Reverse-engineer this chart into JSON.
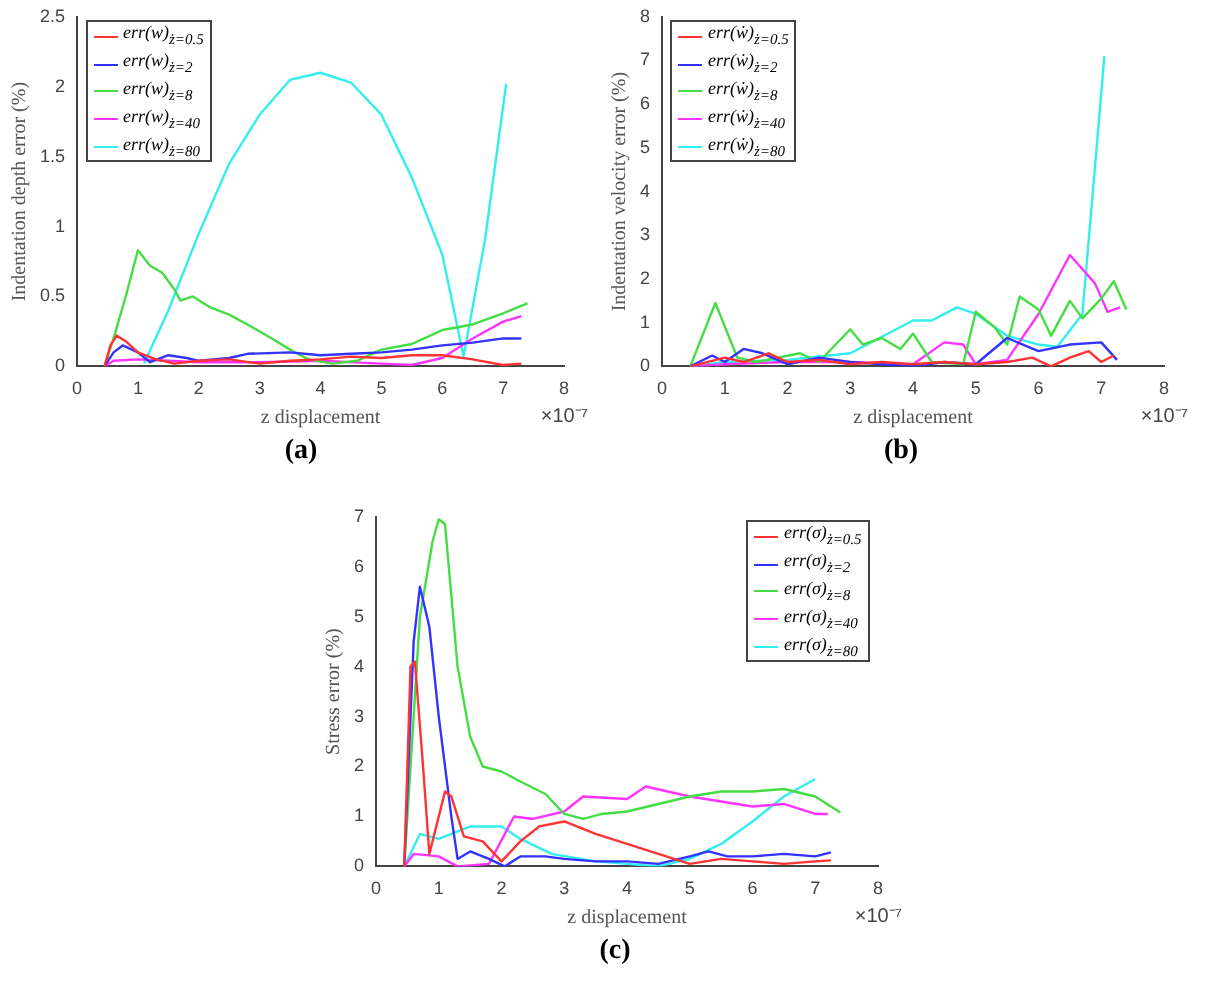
{
  "chart_data": [
    {
      "type": "line",
      "xlabel": "z displacement",
      "ylabel": "Indentation depth error (%)",
      "annotations": [
        "×10⁻⁷",
        "(a)"
      ],
      "xlim": [
        0,
        8
      ],
      "ylim": [
        0,
        2.5
      ],
      "xticks": [
        0,
        1,
        2,
        3,
        4,
        5,
        6,
        7,
        8
      ],
      "yticks": [
        0,
        0.5,
        1,
        1.5,
        2,
        2.5
      ],
      "legend": "top left",
      "marker": "none",
      "line_style": "solid",
      "grid": false,
      "series": [
        {
          "name": "err(w)$_{ż=0.5}$",
          "color": "#ff3333",
          "x": [
            0.45,
            0.55,
            0.65,
            0.8,
            1.0,
            1.3,
            1.6,
            2.0,
            2.5,
            3.0,
            3.5,
            4.0,
            4.5,
            5.0,
            5.5,
            6.0,
            6.5,
            7.0,
            7.3
          ],
          "values": [
            0,
            0.15,
            0.22,
            0.18,
            0.1,
            0.05,
            0.02,
            0.04,
            0.05,
            0.02,
            0.04,
            0.05,
            0.07,
            0.06,
            0.08,
            0.08,
            0.05,
            0.01,
            0.02
          ]
        },
        {
          "name": "err(w)$_{ż=2}$",
          "color": "#3333ff",
          "x": [
            0.45,
            0.6,
            0.75,
            1.0,
            1.2,
            1.5,
            1.8,
            2.0,
            2.5,
            2.8,
            3.5,
            4.0,
            4.5,
            5.0,
            5.5,
            6.0,
            6.5,
            7.0,
            7.3
          ],
          "values": [
            0,
            0.1,
            0.15,
            0.1,
            0.03,
            0.08,
            0.06,
            0.04,
            0.06,
            0.09,
            0.1,
            0.08,
            0.09,
            0.1,
            0.12,
            0.15,
            0.17,
            0.2,
            0.2
          ]
        },
        {
          "name": "err(w)$_{ż=8}$",
          "color": "#44dd44",
          "x": [
            0.45,
            0.6,
            0.8,
            1.0,
            1.2,
            1.4,
            1.6,
            1.7,
            1.9,
            2.2,
            2.5,
            2.8,
            3.2,
            3.5,
            3.8,
            4.2,
            4.6,
            5.0,
            5.5,
            6.0,
            6.5,
            7.0,
            7.4
          ],
          "values": [
            0,
            0.2,
            0.5,
            0.83,
            0.72,
            0.67,
            0.55,
            0.47,
            0.5,
            0.42,
            0.37,
            0.3,
            0.2,
            0.12,
            0.05,
            0.02,
            0.04,
            0.12,
            0.16,
            0.26,
            0.3,
            0.38,
            0.45
          ]
        },
        {
          "name": "err(w)$_{ż=40}$",
          "color": "#ff33ff",
          "x": [
            0.45,
            0.6,
            1.0,
            1.5,
            2.0,
            3.0,
            4.0,
            5.0,
            5.5,
            6.0,
            6.5,
            7.0,
            7.3
          ],
          "values": [
            0,
            0.04,
            0.05,
            0.04,
            0.03,
            0.03,
            0.04,
            0.02,
            0.01,
            0.06,
            0.2,
            0.32,
            0.36
          ]
        },
        {
          "name": "err(w)$_{ż=80}$",
          "color": "#33eeee",
          "x": [
            1.1,
            1.5,
            2.0,
            2.5,
            3.0,
            3.5,
            4.0,
            4.5,
            5.0,
            5.5,
            6.0,
            6.35,
            6.7,
            7.05
          ],
          "values": [
            0.02,
            0.4,
            0.95,
            1.45,
            1.8,
            2.05,
            2.1,
            2.03,
            1.8,
            1.35,
            0.8,
            0.07,
            0.9,
            2.02
          ]
        }
      ]
    },
    {
      "type": "line",
      "xlabel": "z displacement",
      "ylabel": "Indentation velocity error (%)",
      "annotations": [
        "×10⁻⁷",
        "(b)"
      ],
      "xlim": [
        0,
        8
      ],
      "ylim": [
        0,
        8
      ],
      "xticks": [
        0,
        1,
        2,
        3,
        4,
        5,
        6,
        7,
        8
      ],
      "yticks": [
        0,
        1,
        2,
        3,
        4,
        5,
        6,
        7,
        8
      ],
      "legend": "top left",
      "marker": "none",
      "line_style": "solid",
      "grid": false,
      "series": [
        {
          "name": "err(ẇ)$_{ż=0.5}$",
          "color": "#ff3333",
          "x": [
            0.45,
            1.0,
            1.3,
            1.7,
            2.0,
            2.5,
            3.0,
            3.5,
            4.0,
            4.5,
            5.0,
            5.5,
            5.9,
            6.2,
            6.5,
            6.8,
            7.0,
            7.2
          ],
          "values": [
            0,
            0.2,
            0.1,
            0.3,
            0.1,
            0.15,
            0.05,
            0.1,
            0.05,
            0.1,
            0.05,
            0.1,
            0.2,
            0,
            0.2,
            0.35,
            0.1,
            0.25
          ]
        },
        {
          "name": "err(ẇ)$_{ż=2}$",
          "color": "#3333ff",
          "x": [
            0.45,
            0.8,
            1.0,
            1.3,
            1.6,
            2.0,
            2.5,
            3.0,
            3.5,
            4.0,
            4.5,
            5.0,
            5.5,
            6.0,
            6.5,
            7.0,
            7.25
          ],
          "values": [
            0,
            0.25,
            0.1,
            0.4,
            0.3,
            0.05,
            0.2,
            0.1,
            0.05,
            0,
            0.1,
            0.05,
            0.65,
            0.35,
            0.5,
            0.55,
            0.15
          ]
        },
        {
          "name": "err(ẇ)$_{ż=8}$",
          "color": "#44dd44",
          "x": [
            0.45,
            0.85,
            1.2,
            1.5,
            2.2,
            2.5,
            3.0,
            3.2,
            3.5,
            3.8,
            4.0,
            4.3,
            4.8,
            5.0,
            5.3,
            5.5,
            5.7,
            6.0,
            6.2,
            6.5,
            6.7,
            7.0,
            7.2,
            7.4
          ],
          "values": [
            0,
            1.45,
            0.2,
            0.1,
            0.3,
            0.1,
            0.85,
            0.5,
            0.65,
            0.4,
            0.75,
            0.1,
            0.05,
            1.25,
            0.9,
            0.5,
            1.6,
            1.3,
            0.7,
            1.5,
            1.1,
            1.55,
            1.95,
            1.3
          ]
        },
        {
          "name": "err(ẇ)$_{ż=40}$",
          "color": "#ff33ff",
          "x": [
            0.45,
            1.0,
            2.0,
            3.0,
            4.0,
            4.5,
            4.8,
            5.0,
            5.5,
            6.0,
            6.5,
            6.9,
            7.1,
            7.3
          ],
          "values": [
            0,
            0.05,
            0.1,
            0.1,
            0.05,
            0.55,
            0.5,
            0.05,
            0.15,
            1.2,
            2.55,
            1.9,
            1.25,
            1.35
          ]
        },
        {
          "name": "err(ẇ)$_{ż=80}$",
          "color": "#33eeee",
          "x": [
            0.45,
            1.0,
            2.0,
            3.0,
            4.0,
            4.3,
            4.7,
            5.0,
            5.5,
            6.0,
            6.3,
            6.7,
            7.05
          ],
          "values": [
            0,
            0.1,
            0.15,
            0.3,
            1.05,
            1.05,
            1.35,
            1.2,
            0.7,
            0.5,
            0.45,
            1.2,
            7.1
          ]
        }
      ]
    },
    {
      "type": "line",
      "xlabel": "z displacement",
      "ylabel": "Stress error (%)",
      "annotations": [
        "×10⁻⁷",
        "(c)"
      ],
      "xlim": [
        0,
        8
      ],
      "ylim": [
        0,
        7
      ],
      "xticks": [
        0,
        1,
        2,
        3,
        4,
        5,
        6,
        7,
        8
      ],
      "yticks": [
        0,
        1,
        2,
        3,
        4,
        5,
        6,
        7
      ],
      "legend": "top right",
      "marker": "none",
      "line_style": "solid",
      "grid": false,
      "series": [
        {
          "name": "err(σ)$_{ż=0.5}$",
          "color": "#ff3333",
          "x": [
            0.45,
            0.55,
            0.62,
            0.75,
            0.85,
            1.1,
            1.2,
            1.4,
            1.7,
            2.0,
            2.3,
            2.6,
            3.0,
            3.5,
            4.0,
            4.5,
            5.0,
            5.5,
            6.0,
            6.5,
            7.0,
            7.25
          ],
          "values": [
            0,
            4.0,
            4.1,
            2.0,
            0.25,
            1.5,
            1.4,
            0.6,
            0.5,
            0.1,
            0.5,
            0.8,
            0.9,
            0.65,
            0.45,
            0.25,
            0.05,
            0.15,
            0.1,
            0.05,
            0.1,
            0.12
          ]
        },
        {
          "name": "err(σ)$_{ż=2}$",
          "color": "#3333ff",
          "x": [
            0.45,
            0.6,
            0.7,
            0.85,
            1.0,
            1.2,
            1.3,
            1.5,
            1.8,
            2.05,
            2.3,
            2.7,
            3.0,
            3.5,
            4.0,
            4.5,
            5.0,
            5.3,
            5.6,
            6.0,
            6.5,
            7.0,
            7.25
          ],
          "values": [
            0,
            4.5,
            5.6,
            4.8,
            3.0,
            1.0,
            0.15,
            0.3,
            0.15,
            0,
            0.2,
            0.2,
            0.15,
            0.1,
            0.1,
            0.05,
            0.2,
            0.3,
            0.2,
            0.2,
            0.25,
            0.2,
            0.28
          ]
        },
        {
          "name": "err(σ)$_{ż=8}$",
          "color": "#44dd44",
          "x": [
            0.45,
            0.7,
            0.9,
            1.0,
            1.1,
            1.3,
            1.5,
            1.7,
            2.0,
            2.3,
            2.7,
            3.0,
            3.3,
            3.6,
            4.0,
            4.5,
            5.0,
            5.5,
            6.0,
            6.5,
            7.0,
            7.4
          ],
          "values": [
            0,
            5.0,
            6.5,
            6.95,
            6.85,
            4.0,
            2.6,
            2.0,
            1.9,
            1.7,
            1.45,
            1.05,
            0.95,
            1.05,
            1.1,
            1.25,
            1.4,
            1.5,
            1.5,
            1.55,
            1.4,
            1.08
          ]
        },
        {
          "name": "err(σ)$_{ż=40}$",
          "color": "#ff33ff",
          "x": [
            0.45,
            0.6,
            1.0,
            1.3,
            1.8,
            2.2,
            2.5,
            3.0,
            3.3,
            4.0,
            4.3,
            5.0,
            5.5,
            6.0,
            6.5,
            7.0,
            7.2
          ],
          "values": [
            0,
            0.25,
            0.2,
            0,
            0.05,
            1.0,
            0.95,
            1.1,
            1.4,
            1.35,
            1.6,
            1.4,
            1.3,
            1.2,
            1.25,
            1.05,
            1.05
          ]
        },
        {
          "name": "err(σ)$_{ż=80}$",
          "color": "#33eeee",
          "x": [
            0.45,
            0.7,
            1.0,
            1.5,
            2.0,
            2.3,
            2.8,
            3.5,
            4.0,
            4.5,
            5.0,
            5.5,
            6.0,
            6.5,
            7.0
          ],
          "values": [
            0,
            0.65,
            0.55,
            0.8,
            0.8,
            0.55,
            0.25,
            0.1,
            0.05,
            0,
            0.15,
            0.45,
            0.9,
            1.4,
            1.75
          ]
        }
      ]
    }
  ]
}
